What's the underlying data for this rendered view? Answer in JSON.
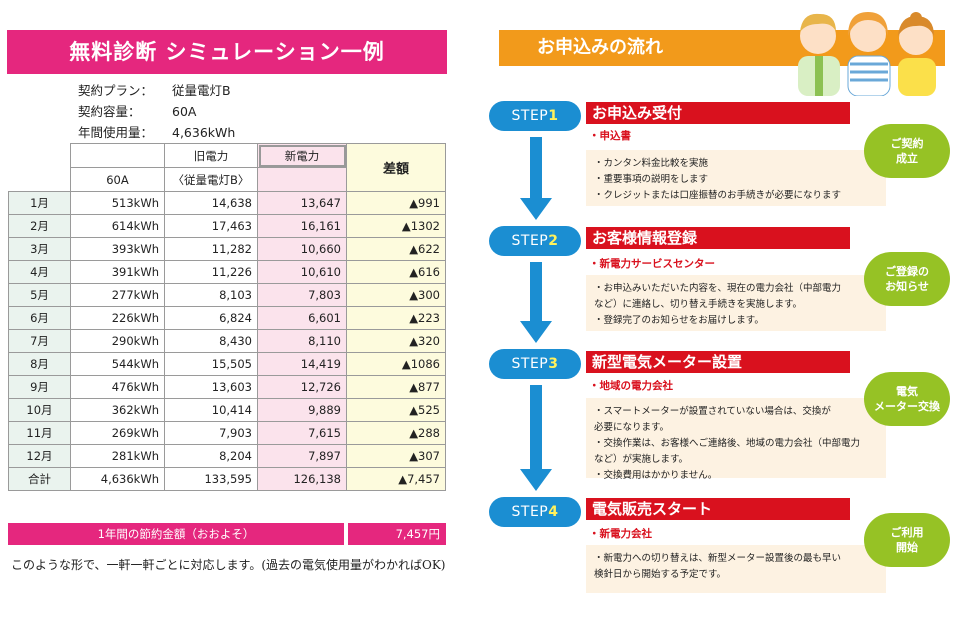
{
  "left": {
    "title": "無料診断 シミュレーション一例",
    "plan": [
      {
        "key": "契約プラン：",
        "value": "従量電灯B"
      },
      {
        "key": "契約容量：",
        "value": "60A"
      },
      {
        "key": "年間使用量：",
        "value": "4,636kWh"
      }
    ],
    "table": {
      "header_old": "旧電力",
      "header_new": "新電力",
      "header_diff": "差額",
      "header_capacity": "60A",
      "header_old_plan": "〈従量電灯B〉",
      "rows": [
        {
          "month": "1月",
          "usage": "513kWh",
          "old": "14,638",
          "new": "13,647",
          "diff": "▲991"
        },
        {
          "month": "2月",
          "usage": "614kWh",
          "old": "17,463",
          "new": "16,161",
          "diff": "▲1302"
        },
        {
          "month": "3月",
          "usage": "393kWh",
          "old": "11,282",
          "new": "10,660",
          "diff": "▲622"
        },
        {
          "month": "4月",
          "usage": "391kWh",
          "old": "11,226",
          "new": "10,610",
          "diff": "▲616"
        },
        {
          "month": "5月",
          "usage": "277kWh",
          "old": "8,103",
          "new": "7,803",
          "diff": "▲300"
        },
        {
          "month": "6月",
          "usage": "226kWh",
          "old": "6,824",
          "new": "6,601",
          "diff": "▲223"
        },
        {
          "month": "7月",
          "usage": "290kWh",
          "old": "8,430",
          "new": "8,110",
          "diff": "▲320"
        },
        {
          "month": "8月",
          "usage": "544kWh",
          "old": "15,505",
          "new": "14,419",
          "diff": "▲1086"
        },
        {
          "month": "9月",
          "usage": "476kWh",
          "old": "13,603",
          "new": "12,726",
          "diff": "▲877"
        },
        {
          "month": "10月",
          "usage": "362kWh",
          "old": "10,414",
          "new": "9,889",
          "diff": "▲525"
        },
        {
          "month": "11月",
          "usage": "269kWh",
          "old": "7,903",
          "new": "7,615",
          "diff": "▲288"
        },
        {
          "month": "12月",
          "usage": "281kWh",
          "old": "8,204",
          "new": "7,897",
          "diff": "▲307"
        },
        {
          "month": "合計",
          "usage": "4,636kWh",
          "old": "133,595",
          "new": "126,138",
          "diff": "▲7,457"
        }
      ]
    },
    "savings_label": "1年間の節約金額（おおよそ）",
    "savings_value": "7,457円",
    "note": "このような形で、一軒一軒ごとに対応します。(過去の電気使用量がわかればOK)"
  },
  "right": {
    "title": "お申込みの流れ",
    "steps": [
      {
        "step_word": "STEP",
        "num": "1",
        "title": "お申込み受付",
        "sub": "・申込書",
        "lines": [
          "・カンタン料金比較を実施",
          "・重要事項の説明をします",
          "・クレジットまたは口座振替のお手続きが必要になります"
        ],
        "bubble": "ご契約\n成立"
      },
      {
        "step_word": "STEP",
        "num": "2",
        "title": "お客様情報登録",
        "sub": "・新電力サービスセンター",
        "lines": [
          "・お申込みいただいた内容を、現在の電力会社（中部電力",
          "  など）に連絡し、切り替え手続きを実施します。",
          "・登録完了のお知らせをお届けします。"
        ],
        "bubble": "ご登録の\nお知らせ"
      },
      {
        "step_word": "STEP",
        "num": "3",
        "title": "新型電気メーター設置",
        "sub": "・地域の電力会社",
        "lines": [
          "・スマートメーターが設置されていない場合は、交換が",
          "  必要になります。",
          "・交換作業は、お客様へご連絡後、地域の電力会社（中部電力",
          "  など）が実施します。",
          "・交換費用はかかりません。"
        ],
        "bubble": "電気\nメーター交換"
      },
      {
        "step_word": "STEP",
        "num": "4",
        "title": "電気販売スタート",
        "sub": "・新電力会社",
        "lines": [
          "・新電力への切り替えは、新型メーター設置後の最も早い",
          "  検針日から開始する予定です。"
        ],
        "bubble": "ご利用\n開始"
      }
    ]
  },
  "colors": {
    "pink": "#e5277e",
    "orange": "#f29a1b",
    "blue": "#1b8ed2",
    "red": "#d9111e",
    "green": "#96c225"
  }
}
